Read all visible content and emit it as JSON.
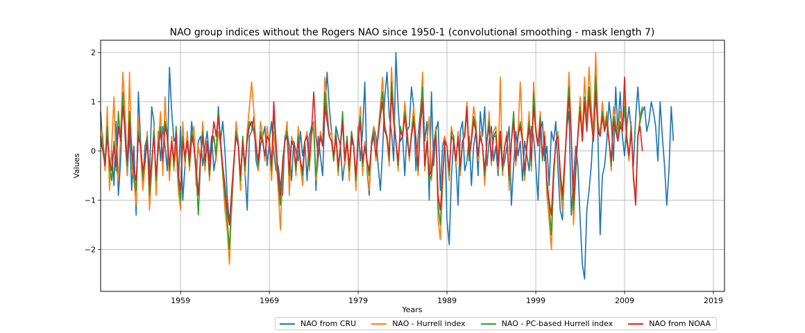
{
  "chart_data": {
    "type": "line",
    "title": "NAO group indices without the Rogers NAO since 1950-1 (convolutional smoothing - mask length 7)",
    "xlabel": "Years",
    "ylabel": "Values",
    "xlim": [
      1950.0,
      2020.25
    ],
    "ylim": [
      -2.85,
      2.25
    ],
    "x_ticks": [
      1959,
      1969,
      1979,
      1989,
      1999,
      2009,
      2019
    ],
    "x_tick_labels": [
      "1959",
      "1969",
      "1979",
      "1989",
      "1999",
      "2009",
      "2019"
    ],
    "y_ticks": [
      -2,
      -1,
      0,
      1,
      2
    ],
    "y_tick_labels": [
      "−2",
      "−1",
      "0",
      "1",
      "2"
    ],
    "grid": true,
    "legend_position": "below-right",
    "x_sampling": {
      "start": 1950.0,
      "step": 0.25
    },
    "series": [
      {
        "name": "NAO from CRU",
        "color": "#1f77b4",
        "values": [
          0.8,
          0.1,
          -0.3,
          0.5,
          -0.4,
          0.0,
          -0.7,
          0.6,
          -0.9,
          -0.2,
          1.2,
          0.3,
          -0.5,
          0.4,
          -0.8,
          0.1,
          -1.3,
          1.2,
          0.2,
          -0.6,
          0.1,
          0.3,
          -0.5,
          0.9,
          0.6,
          -0.8,
          0.4,
          -0.2,
          0.5,
          0.1,
          -0.4,
          1.7,
          0.8,
          0.2,
          0.3,
          -0.7,
          0.5,
          -1.0,
          -0.3,
          0.4,
          -0.2,
          0.6,
          0.1,
          -0.5,
          0.2,
          0.3,
          -0.3,
          0.1,
          0.4,
          -0.2,
          0.3,
          -0.4,
          -0.1,
          0.9,
          0.2,
          0.6,
          0.0,
          -0.9,
          -1.5,
          -1.2,
          -0.3,
          0.5,
          0.2,
          -0.6,
          0.1,
          -0.4,
          -1.2,
          0.3,
          0.4,
          0.7,
          -0.2,
          -0.4,
          0.1,
          0.3,
          0.5,
          -0.3,
          0.2,
          0.6,
          0.0,
          -0.4,
          -0.3,
          -0.7,
          -0.9,
          0.3,
          0.4,
          0.1,
          -0.6,
          0.2,
          0.0,
          -0.2,
          0.4,
          -0.1,
          0.2,
          -0.6,
          0.3,
          0.5,
          0.6,
          -0.8,
          0.3,
          -0.1,
          -0.5,
          0.8,
          1.6,
          0.9,
          0.4,
          -0.2,
          0.5,
          0.3,
          0.1,
          -0.6,
          -0.2,
          0.3,
          -0.5,
          0.2,
          0.1,
          -0.7,
          0.5,
          -0.2,
          0.4,
          1.4,
          -0.4,
          -0.9,
          0.2,
          0.5,
          0.3,
          -0.3,
          -0.8,
          0.0,
          1.1,
          1.6,
          0.7,
          0.4,
          -0.2,
          2.0,
          0.9,
          0.2,
          0.3,
          -0.5,
          0.4,
          0.5,
          1.3,
          0.9,
          -0.4,
          0.3,
          0.8,
          1.4,
          0.2,
          0.6,
          -1.0,
          1.2,
          -0.3,
          0.4,
          0.6,
          -0.8,
          0.1,
          0.3,
          -1.4,
          -1.9,
          -0.5,
          0.2,
          -0.2,
          -1.1,
          0.4,
          0.6,
          -0.4,
          -0.2,
          0.3,
          -0.7,
          0.1,
          0.4,
          -0.5,
          0.8,
          0.3,
          0.9,
          -0.3,
          0.2,
          0.5,
          -0.2,
          0.1,
          -0.5,
          0.3,
          -0.4,
          -0.2,
          0.1,
          0.5,
          -1.1,
          -0.3,
          0.4,
          -0.1,
          0.2,
          -0.6,
          0.2,
          -0.1,
          -0.4,
          0.5,
          0.3,
          -0.3,
          -1.0,
          0.4,
          0.6,
          -0.2,
          0.1,
          -0.7,
          0.4,
          0.2,
          0.6,
          -0.4,
          -1.2,
          -1.4,
          -0.3,
          0.5,
          0.8,
          -1.3,
          -0.6,
          0.1,
          -0.3,
          -1.4,
          -2.3,
          -2.6,
          -1.2,
          -0.8,
          -0.3,
          0.5,
          1.9,
          0.3,
          -1.7,
          -0.5,
          -0.3,
          0.2,
          1.0,
          0.6,
          -0.2,
          1.3,
          0.4,
          1.2,
          0.3,
          -0.1,
          0.5,
          0.9,
          0.4,
          -0.3,
          0.7,
          1.3,
          0.6,
          0.8,
          0.9,
          0.4,
          0.6,
          1.0,
          0.8,
          0.5,
          -0.2,
          1.0,
          0.3,
          -0.3,
          -1.1,
          -0.4,
          0.9,
          0.2
        ]
      },
      {
        "name": "NAO - Hurrell index",
        "color": "#ff7f0e",
        "values": [
          0.5,
          0.3,
          -0.4,
          0.9,
          -0.8,
          0.1,
          1.1,
          -0.3,
          -0.6,
          0.3,
          1.6,
          0.8,
          -0.5,
          1.6,
          -0.3,
          -0.6,
          -1.1,
          0.7,
          0.0,
          -0.8,
          -0.3,
          0.4,
          -1.2,
          -0.4,
          0.5,
          -0.9,
          0.2,
          0.8,
          -0.5,
          1.1,
          0.2,
          -0.6,
          0.3,
          -0.4,
          0.1,
          -0.8,
          -1.2,
          0.6,
          -0.3,
          0.4,
          -0.4,
          0.2,
          0.5,
          -0.7,
          0.1,
          -0.2,
          0.6,
          -0.4,
          0.2,
          -0.6,
          0.1,
          0.3,
          -0.2,
          0.4,
          0.1,
          -0.5,
          -1.2,
          -1.6,
          -2.3,
          -1.1,
          -0.3,
          0.6,
          0.1,
          -0.8,
          0.3,
          -0.5,
          0.4,
          0.9,
          1.4,
          0.8,
          0.2,
          -0.4,
          0.6,
          0.3,
          -0.2,
          0.5,
          0.1,
          -0.6,
          0.4,
          -0.1,
          -0.8,
          -1.6,
          -0.4,
          0.2,
          0.6,
          -0.9,
          0.3,
          0.1,
          -0.5,
          0.5,
          -0.3,
          -0.7,
          0.2,
          0.4,
          -0.4,
          0.3,
          0.6,
          -0.6,
          -0.2,
          0.4,
          0.1,
          1.5,
          0.9,
          0.3,
          0.4,
          -0.2,
          0.3,
          -0.5,
          0.1,
          0.6,
          -0.3,
          0.2,
          -0.6,
          0.4,
          0.1,
          -0.8,
          0.3,
          0.9,
          -0.5,
          0.2,
          -0.3,
          -0.8,
          0.1,
          0.5,
          -0.2,
          0.4,
          0.9,
          1.5,
          0.5,
          0.2,
          -0.3,
          1.7,
          0.8,
          0.2,
          -0.4,
          0.5,
          0.3,
          1.0,
          0.5,
          -0.2,
          0.4,
          0.9,
          0.3,
          -0.5,
          0.6,
          1.6,
          -0.4,
          0.2,
          0.7,
          -0.6,
          0.1,
          0.5,
          -1.4,
          -1.8,
          -0.7,
          0.3,
          0.1,
          -0.6,
          0.5,
          0.2,
          -0.3,
          0.4,
          -0.5,
          0.2,
          0.4,
          1.0,
          -0.2,
          0.3,
          0.9,
          0.6,
          -0.2,
          0.4,
          0.1,
          -0.7,
          0.2,
          0.8,
          -0.3,
          0.4,
          0.5,
          -0.4,
          1.5,
          -0.5,
          0.1,
          0.4,
          -0.8,
          0.2,
          0.6,
          -0.3,
          0.4,
          1.4,
          0.3,
          -0.6,
          0.2,
          0.8,
          -0.4,
          1.4,
          0.5,
          0.1,
          0.8,
          -0.2,
          0.4,
          -0.9,
          -1.4,
          -2.0,
          -0.6,
          0.2,
          0.4,
          -0.7,
          -1.2,
          -0.4,
          0.7,
          1.6,
          0.4,
          -1.5,
          -0.5,
          0.4,
          1.1,
          0.3,
          1.5,
          0.6,
          1.7,
          0.9,
          0.3,
          2.0,
          0.6,
          0.3,
          1.0,
          0.5,
          0.8,
          0.2,
          -0.4,
          0.9,
          0.6,
          0.3,
          0.8,
          0.5,
          1.1,
          0.2,
          -0.2,
          0.6,
          -0.6,
          -1.0,
          0.3,
          0.7,
          0.9
        ]
      },
      {
        "name": "NAO - PC-based Hurrell index",
        "color": "#2ca02c",
        "values": [
          0.3,
          0.1,
          -0.2,
          0.5,
          -0.3,
          -0.6,
          0.2,
          -0.4,
          0.8,
          0.2,
          1.1,
          0.5,
          -0.3,
          0.8,
          0.0,
          -0.5,
          -0.8,
          0.4,
          0.1,
          -0.5,
          -0.2,
          0.3,
          -0.9,
          -0.3,
          0.4,
          -0.6,
          0.1,
          0.5,
          -0.2,
          0.6,
          0.4,
          -0.4,
          0.2,
          -0.3,
          0.5,
          -0.6,
          -1.0,
          0.3,
          -0.2,
          0.2,
          -0.3,
          0.4,
          0.1,
          -0.4,
          -1.3,
          -0.2,
          0.4,
          -0.3,
          0.2,
          -0.5,
          0.1,
          0.3,
          -0.1,
          0.8,
          0.2,
          -0.4,
          -0.9,
          -1.4,
          -2.0,
          -0.9,
          -0.2,
          0.4,
          0.1,
          -0.6,
          0.3,
          -0.4,
          0.3,
          0.6,
          0.5,
          0.4,
          0.1,
          -0.3,
          0.4,
          0.2,
          -0.1,
          0.3,
          0.2,
          -0.4,
          0.8,
          0.1,
          -0.6,
          -1.1,
          -0.3,
          0.2,
          0.4,
          -0.5,
          0.2,
          0.1,
          -0.4,
          0.3,
          -0.2,
          -0.5,
          0.2,
          0.3,
          -0.3,
          0.5,
          0.4,
          -0.5,
          -0.1,
          0.3,
          0.1,
          1.2,
          0.7,
          0.3,
          0.2,
          -0.2,
          0.4,
          -0.4,
          0.1,
          0.8,
          -0.2,
          0.3,
          -0.4,
          0.4,
          0.1,
          -0.6,
          0.2,
          0.7,
          -0.3,
          0.1,
          -0.2,
          -0.5,
          0.1,
          0.4,
          -0.1,
          0.3,
          0.8,
          1.2,
          0.5,
          0.3,
          -0.2,
          1.4,
          0.7,
          0.2,
          -0.3,
          0.5,
          0.3,
          0.8,
          0.4,
          -0.1,
          0.3,
          0.7,
          0.2,
          -0.4,
          0.6,
          1.3,
          -0.3,
          0.2,
          -0.6,
          -0.5,
          0.1,
          0.4,
          -1.1,
          -1.5,
          -0.6,
          0.2,
          0.1,
          -0.5,
          0.4,
          0.3,
          -0.2,
          0.3,
          -0.4,
          0.2,
          0.3,
          0.8,
          -0.2,
          0.2,
          0.7,
          0.5,
          -0.1,
          0.3,
          0.1,
          -0.5,
          0.2,
          0.6,
          -0.2,
          0.3,
          0.4,
          -0.3,
          0.4,
          -0.4,
          0.1,
          0.3,
          -0.6,
          0.2,
          0.8,
          -0.2,
          0.3,
          0.6,
          0.2,
          -0.5,
          0.1,
          0.6,
          -0.3,
          1.2,
          0.4,
          0.1,
          0.7,
          -0.2,
          0.3,
          -0.7,
          -1.1,
          -1.7,
          -0.5,
          0.2,
          0.3,
          -0.5,
          -1.0,
          -0.3,
          0.6,
          1.3,
          0.3,
          -1.2,
          -0.4,
          0.3,
          0.9,
          0.2,
          1.1,
          0.5,
          1.3,
          0.7,
          0.2,
          1.5,
          0.5,
          0.3,
          0.8,
          0.4,
          0.7,
          0.2,
          -0.3,
          0.7,
          0.5,
          0.2,
          0.6,
          0.4,
          0.9,
          0.2,
          -0.1,
          0.5,
          -0.5,
          -1.0,
          0.3,
          0.6,
          0.9
        ]
      },
      {
        "name": "NAO from NOAA",
        "color": "#d62728",
        "values": [
          0.2,
          0.0,
          -0.3,
          0.3,
          -0.2,
          -0.4,
          0.1,
          -0.3,
          0.5,
          0.2,
          0.9,
          0.4,
          -0.2,
          0.6,
          0.1,
          -0.4,
          -0.6,
          0.3,
          0.1,
          -0.4,
          -0.2,
          0.2,
          -0.7,
          -0.2,
          0.3,
          -0.5,
          0.1,
          0.4,
          -0.2,
          0.5,
          0.3,
          -0.3,
          0.2,
          -0.2,
          0.4,
          -0.5,
          -0.8,
          0.2,
          -0.1,
          0.2,
          -0.2,
          0.3,
          0.1,
          -0.3,
          -0.9,
          -0.1,
          0.3,
          -0.2,
          0.2,
          -0.4,
          0.1,
          0.6,
          0.3,
          0.7,
          0.2,
          -0.3,
          -0.7,
          -1.2,
          -1.5,
          -0.8,
          -0.2,
          0.3,
          0.1,
          -0.5,
          0.2,
          -0.3,
          0.2,
          0.5,
          0.6,
          0.4,
          0.1,
          -0.2,
          0.3,
          0.2,
          -0.1,
          0.3,
          0.2,
          -0.3,
          1.0,
          0.2,
          -0.5,
          -0.9,
          -0.2,
          0.2,
          0.3,
          -0.4,
          0.2,
          0.1,
          -0.3,
          0.2,
          -0.2,
          -0.4,
          0.2,
          0.3,
          -0.2,
          0.4,
          1.2,
          0.3,
          -0.1,
          0.3,
          0.1,
          0.9,
          0.6,
          0.3,
          0.2,
          -0.1,
          0.3,
          -0.3,
          0.1,
          0.6,
          -0.2,
          0.2,
          -0.3,
          0.3,
          0.1,
          -0.5,
          0.2,
          0.6,
          -0.2,
          0.1,
          -0.2,
          -0.4,
          0.1,
          0.3,
          -0.1,
          0.3,
          0.7,
          1.0,
          0.4,
          0.3,
          -0.1,
          1.2,
          0.6,
          0.2,
          -0.2,
          0.4,
          0.3,
          0.7,
          0.3,
          -0.1,
          0.3,
          0.6,
          0.2,
          -0.3,
          0.5,
          1.0,
          -0.3,
          0.2,
          -0.5,
          -0.4,
          0.1,
          0.3,
          -0.9,
          -1.2,
          -0.5,
          0.2,
          0.1,
          -0.4,
          0.3,
          0.2,
          -0.2,
          0.3,
          -0.3,
          0.2,
          0.3,
          0.9,
          -0.1,
          0.2,
          0.6,
          0.4,
          -0.1,
          0.3,
          0.1,
          -0.4,
          0.2,
          0.5,
          -0.2,
          0.3,
          0.3,
          -0.3,
          0.4,
          -0.3,
          0.1,
          0.3,
          -0.5,
          0.2,
          0.6,
          -0.2,
          0.3,
          0.5,
          0.2,
          -0.4,
          0.1,
          0.5,
          -0.2,
          0.9,
          0.4,
          0.1,
          0.6,
          -0.1,
          0.3,
          -0.6,
          -1.0,
          -1.3,
          -0.4,
          0.2,
          0.3,
          -0.4,
          -0.9,
          -0.2,
          0.5,
          1.1,
          0.3,
          -1.0,
          -0.3,
          0.3,
          0.8,
          0.2,
          1.0,
          0.4,
          1.1,
          0.6,
          0.2,
          1.2,
          0.4,
          0.3,
          0.7,
          0.4,
          0.6,
          0.2,
          -0.2,
          0.6,
          0.4,
          0.2,
          0.5,
          0.4,
          1.5,
          0.3,
          -0.1,
          0.4,
          -0.5,
          -1.1,
          0.3,
          0.5,
          0.0
        ]
      }
    ]
  }
}
